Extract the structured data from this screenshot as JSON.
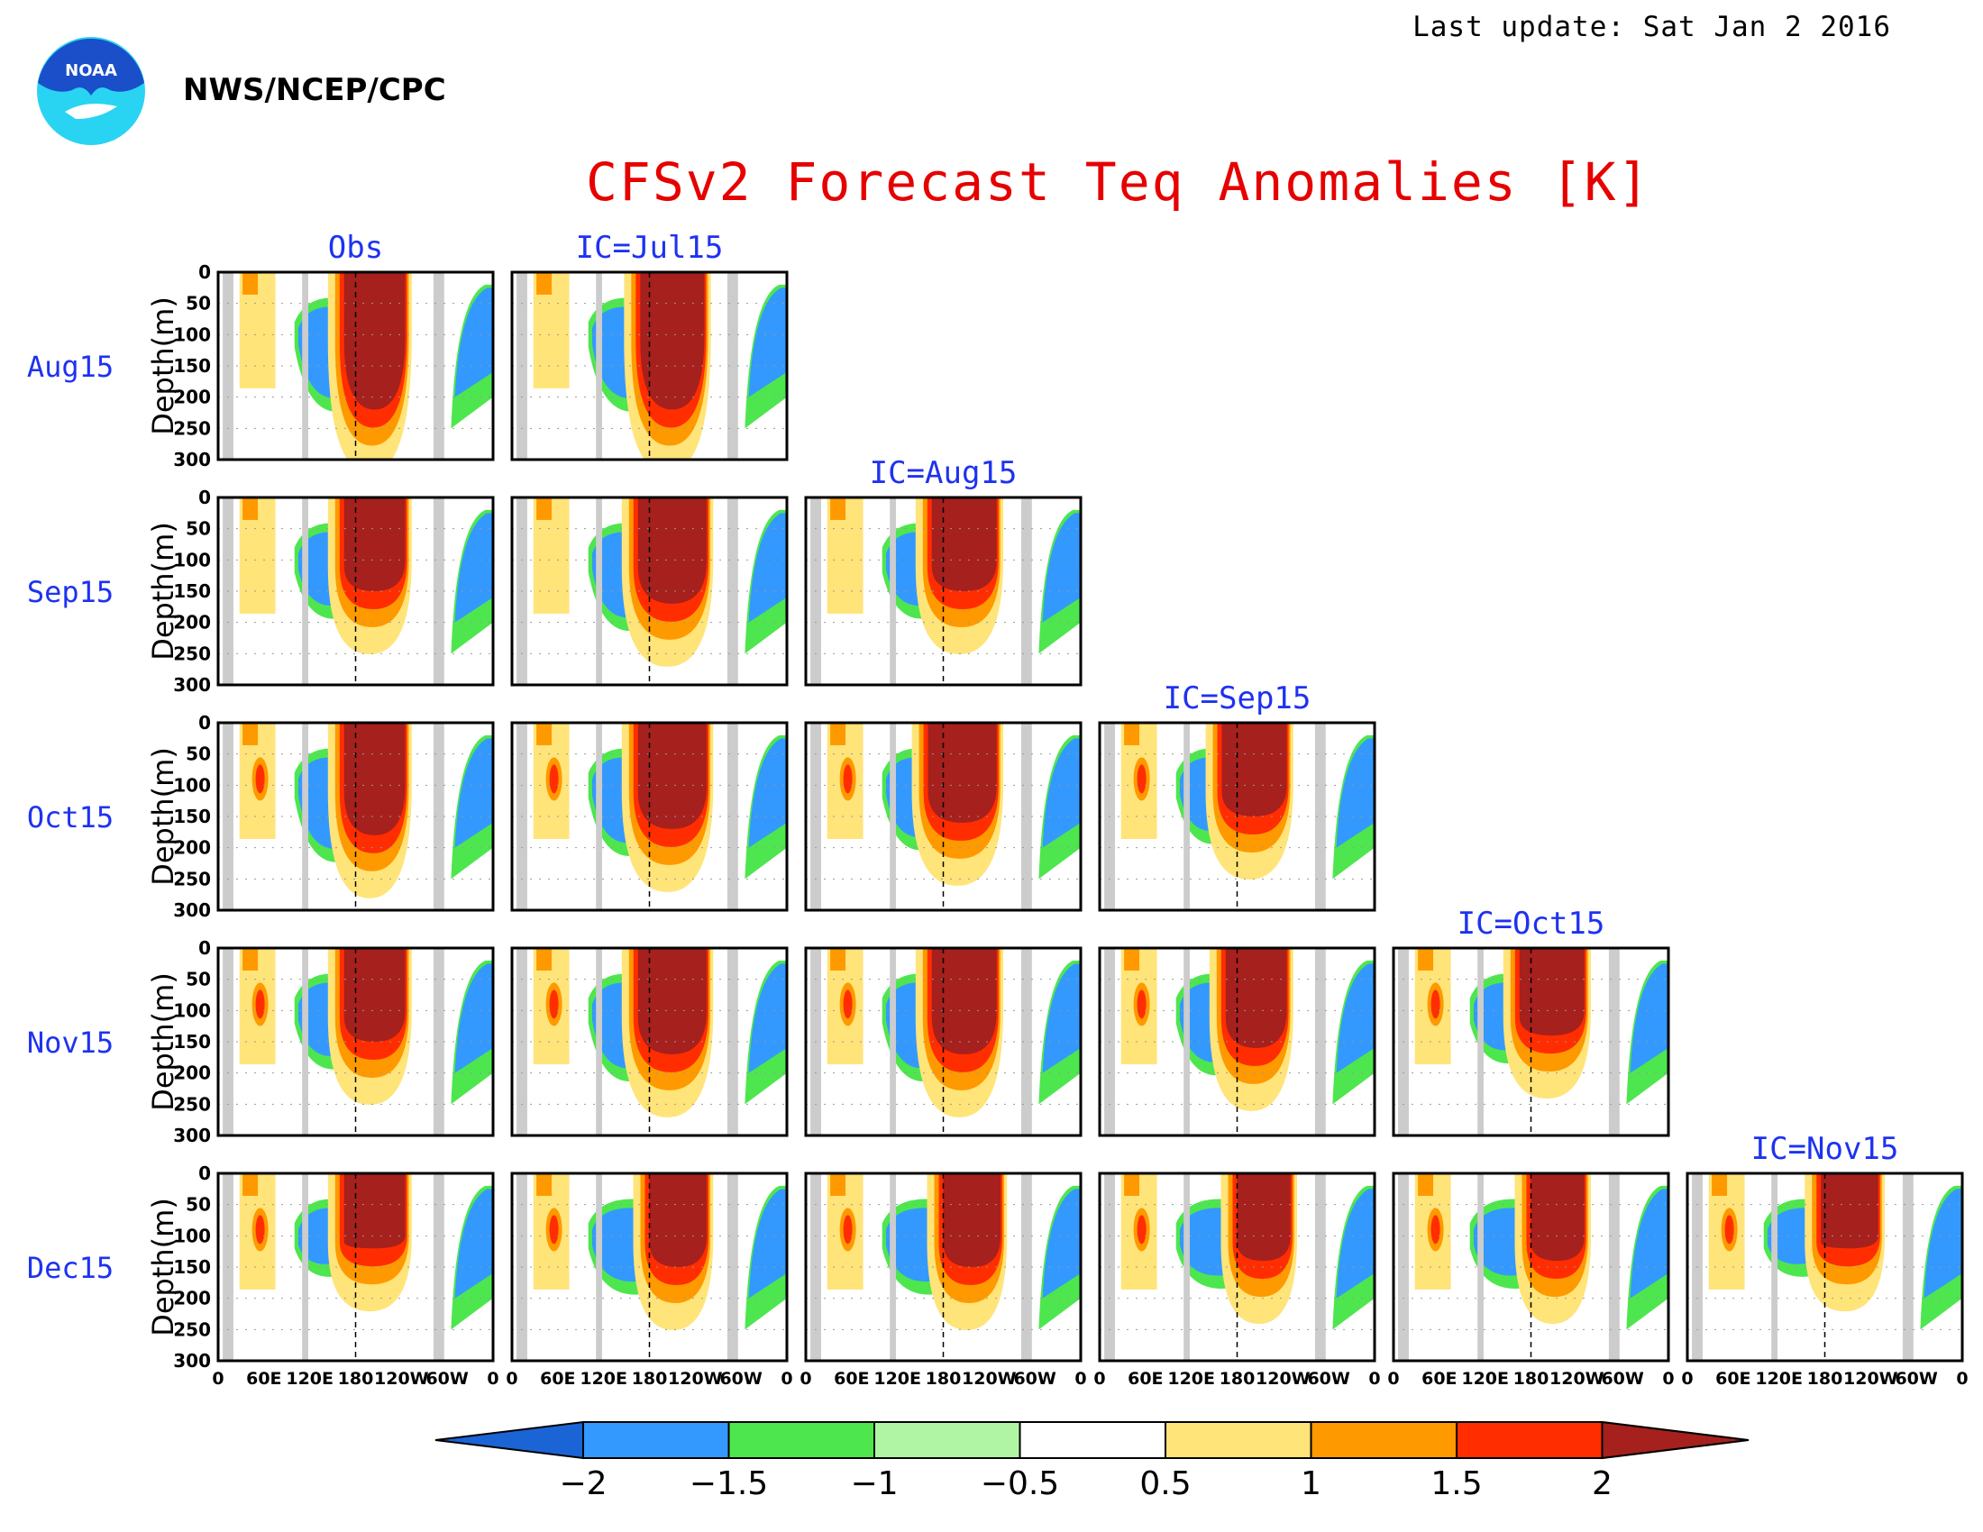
{
  "header": {
    "last_update": "Last update: Sat Jan 2 2016",
    "agency": "NWS/NCEP/CPC",
    "logo_text": "NOAA",
    "title": "CFSv2 Forecast Teq Anomalies [K]"
  },
  "chart_data": {
    "type": "heatmap",
    "title": "CFSv2 Forecast Teq Anomalies [K]",
    "units": "K",
    "ylabel": "Depth(m)",
    "y_ticks": [
      0,
      50,
      100,
      150,
      200,
      250,
      300
    ],
    "ylim": [
      300,
      0
    ],
    "x_ticks": [
      "0",
      "60E",
      "120E",
      "180",
      "120W",
      "60W",
      "0"
    ],
    "xlim": [
      "0",
      "0"
    ],
    "column_titles": [
      "Obs",
      "IC=Jul15",
      "IC=Aug15",
      "IC=Sep15",
      "IC=Oct15",
      "IC=Nov15"
    ],
    "row_labels": [
      "Aug15",
      "Sep15",
      "Oct15",
      "Nov15",
      "Dec15"
    ],
    "land_mask_lon_ranges": [
      [
        6,
        20
      ],
      [
        110,
        118
      ],
      [
        282,
        296
      ]
    ],
    "colorbar": {
      "levels": [
        "−2",
        "−1.5",
        "−1",
        "−0.5",
        "0.5",
        "1",
        "1.5",
        "2"
      ],
      "colors": [
        "#1a64d6",
        "#3399ff",
        "#4ee64e",
        "#aff5a3",
        "#ffffff",
        "#ffe479",
        "#ff9900",
        "#ff2d00",
        "#a6201d"
      ]
    },
    "panels": [
      {
        "row": "Aug15",
        "column": "Obs",
        "warm_pool_lon": [
          165,
          245
        ],
        "warm_pool_max_depth": 220
      },
      {
        "row": "Aug15",
        "column": "IC=Jul15",
        "warm_pool_lon": [
          168,
          252
        ],
        "warm_pool_max_depth": 220
      },
      {
        "row": "Sep15",
        "column": "Obs",
        "warm_pool_lon": [
          165,
          245
        ],
        "warm_pool_max_depth": 150
      },
      {
        "row": "Sep15",
        "column": "IC=Jul15",
        "warm_pool_lon": [
          165,
          255
        ],
        "warm_pool_max_depth": 170
      },
      {
        "row": "Sep15",
        "column": "IC=Aug15",
        "warm_pool_lon": [
          165,
          250
        ],
        "warm_pool_max_depth": 150
      },
      {
        "row": "Oct15",
        "column": "Obs",
        "warm_pool_lon": [
          165,
          245
        ],
        "warm_pool_max_depth": 180
      },
      {
        "row": "Oct15",
        "column": "IC=Jul15",
        "warm_pool_lon": [
          165,
          255
        ],
        "warm_pool_max_depth": 170
      },
      {
        "row": "Oct15",
        "column": "IC=Aug15",
        "warm_pool_lon": [
          160,
          250
        ],
        "warm_pool_max_depth": 160
      },
      {
        "row": "Oct15",
        "column": "IC=Sep15",
        "warm_pool_lon": [
          160,
          245
        ],
        "warm_pool_max_depth": 150
      },
      {
        "row": "Nov15",
        "column": "Obs",
        "warm_pool_lon": [
          165,
          245
        ],
        "warm_pool_max_depth": 150
      },
      {
        "row": "Nov15",
        "column": "IC=Jul15",
        "warm_pool_lon": [
          165,
          255
        ],
        "warm_pool_max_depth": 170
      },
      {
        "row": "Nov15",
        "column": "IC=Aug15",
        "warm_pool_lon": [
          165,
          250
        ],
        "warm_pool_max_depth": 170
      },
      {
        "row": "Nov15",
        "column": "IC=Sep15",
        "warm_pool_lon": [
          165,
          245
        ],
        "warm_pool_max_depth": 160
      },
      {
        "row": "Nov15",
        "column": "IC=Oct15",
        "warm_pool_lon": [
          165,
          250
        ],
        "warm_pool_max_depth": 140
      },
      {
        "row": "Dec15",
        "column": "Obs",
        "warm_pool_lon": [
          165,
          245
        ],
        "warm_pool_max_depth": 120
      },
      {
        "row": "Dec15",
        "column": "IC=Jul15",
        "warm_pool_lon": [
          180,
          255
        ],
        "warm_pool_max_depth": 150
      },
      {
        "row": "Dec15",
        "column": "IC=Aug15",
        "warm_pool_lon": [
          180,
          255
        ],
        "warm_pool_max_depth": 150
      },
      {
        "row": "Dec15",
        "column": "IC=Sep15",
        "warm_pool_lon": [
          180,
          250
        ],
        "warm_pool_max_depth": 140
      },
      {
        "row": "Dec15",
        "column": "IC=Oct15",
        "warm_pool_lon": [
          180,
          250
        ],
        "warm_pool_max_depth": 140
      },
      {
        "row": "Dec15",
        "column": "IC=Nov15",
        "warm_pool_lon": [
          175,
          250
        ],
        "warm_pool_max_depth": 120
      }
    ]
  }
}
